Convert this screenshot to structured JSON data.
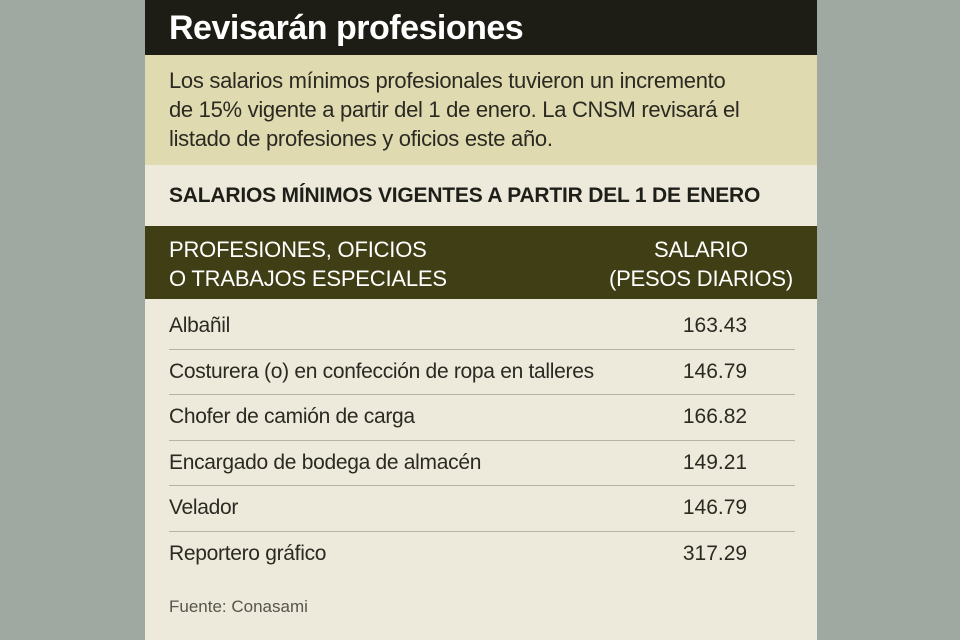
{
  "header": {
    "title": "Revisarán profesiones"
  },
  "intro": {
    "lines": [
      "Los salarios mínimos profesionales tuvieron un incremento",
      "de 15% vigente a partir del 1 de enero. La CNSM revisará el",
      "listado de profesiones y oficios este año."
    ]
  },
  "subtitle": "SALARIOS MÍNIMOS VIGENTES A PARTIR DEL 1 DE ENERO",
  "table": {
    "col_profession": [
      "PROFESIONES, OFICIOS",
      "O TRABAJOS ESPECIALES"
    ],
    "col_salary": [
      "SALARIO",
      "(PESOS DIARIOS)"
    ],
    "rows": [
      {
        "name": "Albañil",
        "value": "163.43"
      },
      {
        "name": "Costurera (o) en confección de ropa en talleres",
        "value": "146.79"
      },
      {
        "name": "Chofer de camión de carga",
        "value": "166.82"
      },
      {
        "name": "Encargado de bodega de almacén",
        "value": "149.21"
      },
      {
        "name": "Velador",
        "value": "146.79"
      },
      {
        "name": "Reportero gráfico",
        "value": "317.29"
      }
    ]
  },
  "source": "Fuente: Conasami",
  "colors": {
    "background": "#a0a8a2",
    "card": "#eeeadb",
    "title_bar": "#1d1d16",
    "intro_box": "#e0dab0",
    "table_header": "#3f3e14"
  }
}
